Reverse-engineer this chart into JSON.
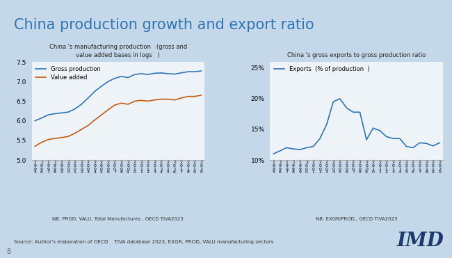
{
  "title": "China production growth and export ratio",
  "title_color": "#2E75B6",
  "bg_color": "#C5D8EA",
  "panel_bg": "#EEF3F8",
  "left": {
    "subtitle": "China 's manufacturing production   (gross and\nvalue added bases in logs   )",
    "ylim": [
      5.0,
      7.5
    ],
    "yticks": [
      5.0,
      5.5,
      6.0,
      6.5,
      7.0,
      7.5
    ],
    "note": "NB: PROD, VALU, Total Manufactures , OECD TIVA2023",
    "gross_label": "Gross production",
    "valu_label": "Value added",
    "gross_color": "#2E75B6",
    "valu_color": "#C55A11",
    "years": [
      1995,
      1996,
      1997,
      1998,
      1999,
      2000,
      2001,
      2002,
      2003,
      2004,
      2005,
      2006,
      2007,
      2008,
      2009,
      2010,
      2011,
      2012,
      2013,
      2014,
      2015,
      2016,
      2017,
      2018,
      2019,
      2020
    ],
    "gross": [
      6.0,
      6.07,
      6.15,
      6.18,
      6.2,
      6.22,
      6.3,
      6.42,
      6.58,
      6.75,
      6.88,
      7.0,
      7.08,
      7.13,
      7.1,
      7.18,
      7.2,
      7.18,
      7.21,
      7.22,
      7.2,
      7.19,
      7.22,
      7.25,
      7.25,
      7.27
    ],
    "valu": [
      5.35,
      5.45,
      5.52,
      5.55,
      5.57,
      5.6,
      5.68,
      5.78,
      5.88,
      6.02,
      6.15,
      6.28,
      6.4,
      6.45,
      6.42,
      6.5,
      6.52,
      6.5,
      6.53,
      6.55,
      6.55,
      6.53,
      6.58,
      6.62,
      6.62,
      6.65
    ]
  },
  "right": {
    "subtitle": "China 's gross exports to gross production ratio",
    "ylim": [
      0.1,
      0.26
    ],
    "yticks": [
      0.1,
      0.15,
      0.2,
      0.25
    ],
    "note": "NB: EXGR/PROD,, OECD TIVA2023",
    "exports_label": "Exports  (% of production  )",
    "exports_color": "#2E75B6",
    "years": [
      1995,
      1996,
      1997,
      1998,
      1999,
      2000,
      2001,
      2002,
      2003,
      2004,
      2005,
      2006,
      2007,
      2008,
      2009,
      2010,
      2011,
      2012,
      2013,
      2014,
      2015,
      2016,
      2017,
      2018,
      2019,
      2020
    ],
    "exports": [
      0.11,
      0.115,
      0.12,
      0.118,
      0.117,
      0.12,
      0.122,
      0.135,
      0.158,
      0.195,
      0.2,
      0.185,
      0.178,
      0.178,
      0.133,
      0.152,
      0.148,
      0.138,
      0.135,
      0.135,
      0.122,
      0.12,
      0.128,
      0.127,
      0.123,
      0.128
    ]
  },
  "source": "Source: Author's elaboration of OECD    TIVA database 2023, EXGR, PROD, VALU manufacturing sectors",
  "logo": "IMD",
  "page_num": "8"
}
